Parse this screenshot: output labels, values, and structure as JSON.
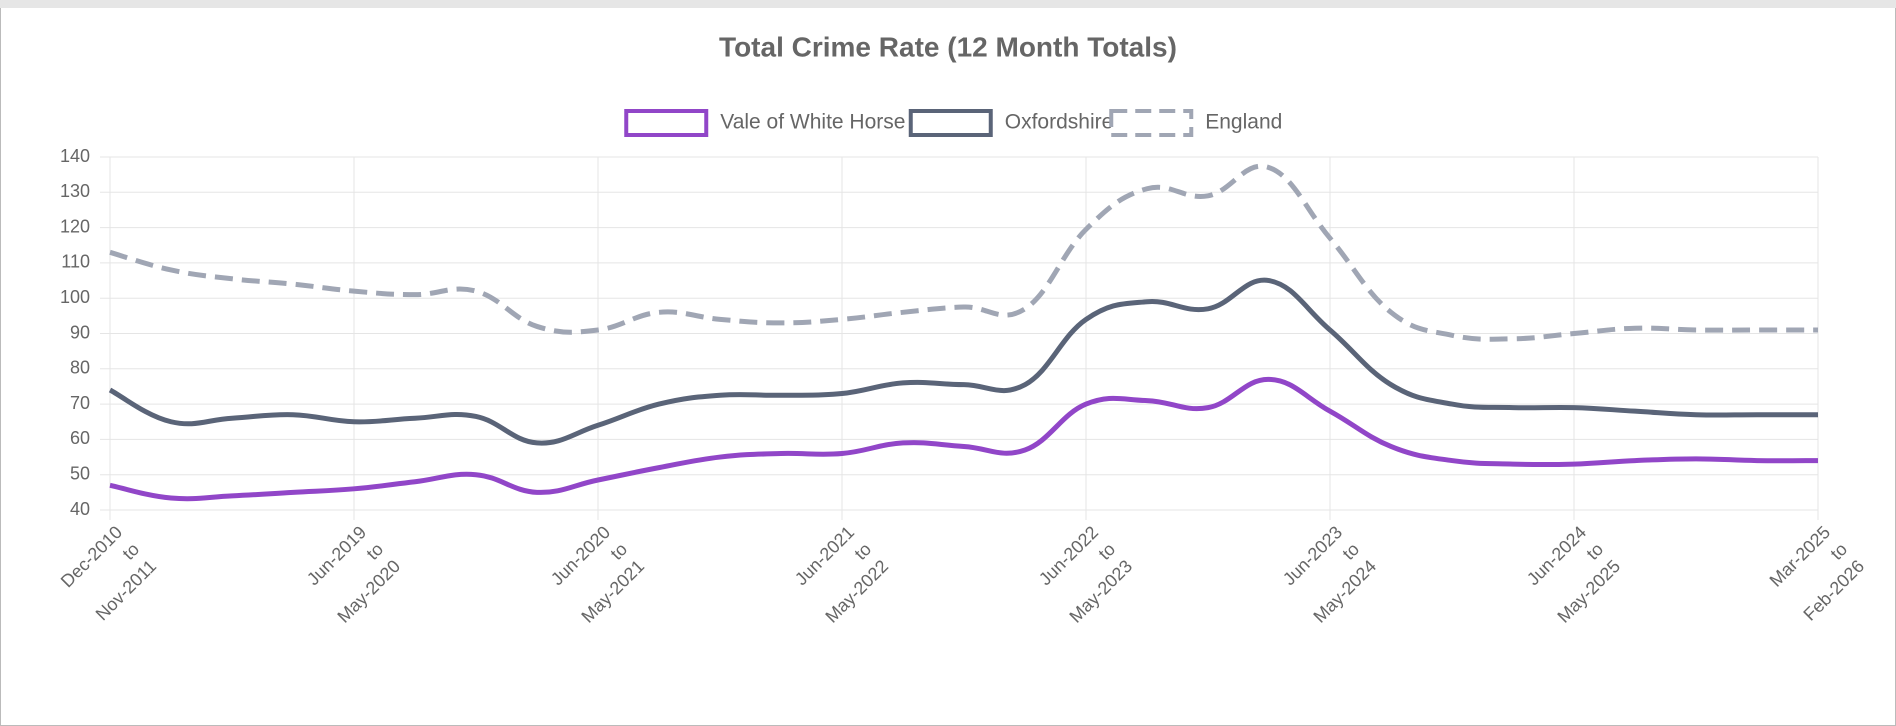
{
  "chart_data": {
    "type": "line",
    "title": "Total Crime Rate (12 Month Totals)",
    "categories": [
      [
        "Dec-2010",
        "to",
        "Nov-2011"
      ],
      null,
      null,
      null,
      [
        "Jun-2019",
        "to",
        "May-2020"
      ],
      null,
      null,
      null,
      [
        "Jun-2020",
        "to",
        "May-2021"
      ],
      null,
      null,
      null,
      [
        "Jun-2021",
        "to",
        "May-2022"
      ],
      null,
      null,
      null,
      [
        "Jun-2022",
        "to",
        "May-2023"
      ],
      null,
      null,
      null,
      [
        "Jun-2023",
        "to",
        "May-2024"
      ],
      null,
      null,
      null,
      [
        "Jun-2024",
        "to",
        "May-2025"
      ],
      null,
      null,
      null,
      [
        "Mar-2025",
        "to",
        "Feb-2026"
      ]
    ],
    "series": [
      {
        "name": "Vale of White Horse",
        "color": "#9146c8",
        "dashed": false,
        "values": [
          47,
          43.4,
          44,
          45,
          46,
          48,
          50,
          45,
          48.5,
          52,
          55,
          56,
          56,
          59,
          58,
          57,
          70,
          71,
          69,
          77,
          68,
          58,
          54,
          53,
          53,
          54,
          54.5,
          54,
          54
        ]
      },
      {
        "name": "Oxfordshire",
        "color": "#5a6478",
        "dashed": false,
        "values": [
          74,
          65,
          66,
          67,
          65,
          66,
          66.5,
          59,
          64,
          70,
          72.5,
          72.5,
          73,
          76,
          75.5,
          75.5,
          94,
          99,
          97,
          105,
          91,
          75.5,
          70,
          69,
          69,
          68,
          67,
          67,
          67
        ]
      },
      {
        "name": "England",
        "color": "#a0a6b4",
        "dashed": true,
        "values": [
          113,
          108,
          105.5,
          104,
          102,
          101,
          102,
          92,
          91,
          96,
          94,
          93,
          94,
          96,
          97.5,
          97,
          119.5,
          131,
          129,
          137,
          117,
          96,
          89.5,
          88.5,
          90,
          91.5,
          91,
          91,
          91
        ]
      }
    ],
    "ylim": [
      40,
      140
    ],
    "yticks": [
      40,
      50,
      60,
      70,
      80,
      90,
      100,
      110,
      120,
      130,
      140
    ],
    "grid": true,
    "legend": "top"
  }
}
